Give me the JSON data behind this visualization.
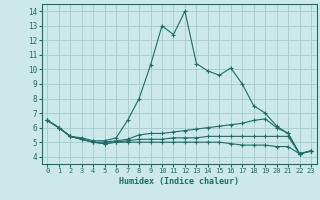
{
  "xlabel": "Humidex (Indice chaleur)",
  "ylabel": "",
  "xlim": [
    -0.5,
    23.5
  ],
  "ylim": [
    3.5,
    14.5
  ],
  "yticks": [
    4,
    5,
    6,
    7,
    8,
    9,
    10,
    11,
    12,
    13,
    14
  ],
  "xticks": [
    0,
    1,
    2,
    3,
    4,
    5,
    6,
    7,
    8,
    9,
    10,
    11,
    12,
    13,
    14,
    15,
    16,
    17,
    18,
    19,
    20,
    21,
    22,
    23
  ],
  "bg_color": "#cce8e8",
  "grid_color": "#a8d0d0",
  "line_color": "#1a6e65",
  "lines": [
    [
      6.5,
      6.0,
      5.4,
      5.3,
      5.1,
      5.1,
      5.3,
      6.5,
      8.0,
      10.3,
      13.0,
      12.4,
      14.0,
      10.4,
      9.9,
      9.6,
      10.1,
      9.0,
      7.5,
      7.0,
      6.1,
      5.6,
      4.2,
      4.4
    ],
    [
      6.5,
      6.0,
      5.4,
      5.2,
      5.0,
      5.0,
      5.1,
      5.2,
      5.5,
      5.6,
      5.6,
      5.7,
      5.8,
      5.9,
      6.0,
      6.1,
      6.2,
      6.3,
      6.5,
      6.6,
      6.0,
      5.6,
      4.2,
      4.4
    ],
    [
      6.5,
      6.0,
      5.4,
      5.2,
      5.0,
      4.9,
      5.0,
      5.1,
      5.2,
      5.2,
      5.2,
      5.3,
      5.3,
      5.3,
      5.4,
      5.4,
      5.4,
      5.4,
      5.4,
      5.4,
      5.4,
      5.4,
      4.2,
      4.4
    ],
    [
      6.5,
      6.0,
      5.4,
      5.2,
      5.0,
      4.9,
      5.0,
      5.0,
      5.0,
      5.0,
      5.0,
      5.0,
      5.0,
      5.0,
      5.0,
      5.0,
      4.9,
      4.8,
      4.8,
      4.8,
      4.7,
      4.7,
      4.2,
      4.4
    ]
  ]
}
